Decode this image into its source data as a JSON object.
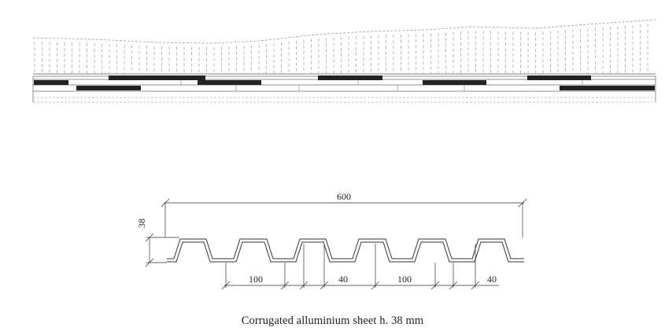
{
  "caption": "Corrugated alluminium sheet h. 38 mm",
  "dimensions": {
    "overall_width": "600",
    "height": "38",
    "valley_width_1": "100",
    "crest_width_1": "40",
    "valley_width_2": "100",
    "crest_width_2": "40"
  },
  "colors": {
    "line": "#333333",
    "dash": "#9a9a9a",
    "fill": "#222222"
  }
}
